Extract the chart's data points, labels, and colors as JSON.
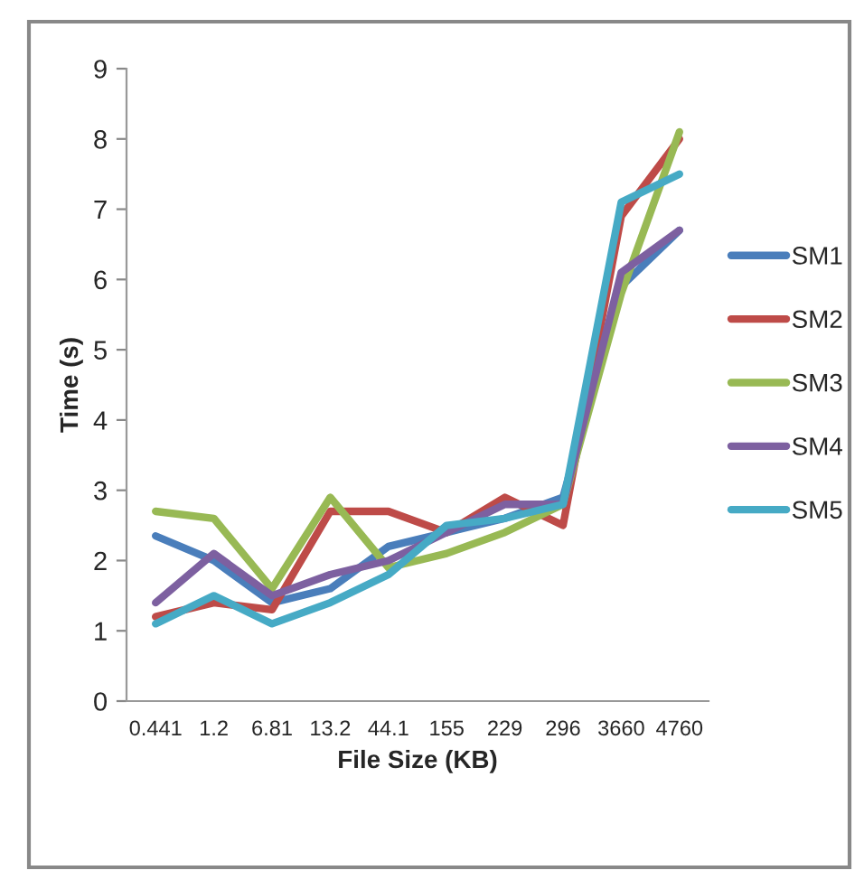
{
  "chart_data": {
    "type": "line",
    "xlabel": "File Size (KB)",
    "ylabel": "Time (s)",
    "categories": [
      "0.441",
      "1.2",
      "6.81",
      "13.2",
      "44.1",
      "155",
      "229",
      "296",
      "3660",
      "4760"
    ],
    "ylim": [
      0,
      9
    ],
    "yticks": [
      0,
      1,
      2,
      3,
      4,
      5,
      6,
      7,
      8,
      9
    ],
    "grid": false,
    "legend": "right",
    "marker": "none",
    "line_style": "solid",
    "series": [
      {
        "name": "SM1",
        "color": "#4a7ebb",
        "values": [
          2.35,
          2.0,
          1.4,
          1.6,
          2.2,
          2.4,
          2.6,
          2.9,
          5.9,
          6.7
        ]
      },
      {
        "name": "SM2",
        "color": "#be4b48",
        "values": [
          1.2,
          1.4,
          1.3,
          2.7,
          2.7,
          2.4,
          2.9,
          2.5,
          6.9,
          8.0
        ]
      },
      {
        "name": "SM3",
        "color": "#98b954",
        "values": [
          2.7,
          2.6,
          1.6,
          2.9,
          1.9,
          2.1,
          2.4,
          2.8,
          5.8,
          8.1
        ]
      },
      {
        "name": "SM4",
        "color": "#7d60a0",
        "values": [
          1.4,
          2.1,
          1.5,
          1.8,
          2.0,
          2.4,
          2.8,
          2.8,
          6.1,
          6.7
        ]
      },
      {
        "name": "SM5",
        "color": "#46aac5",
        "values": [
          1.1,
          1.5,
          1.1,
          1.4,
          1.8,
          2.5,
          2.6,
          2.8,
          7.1,
          7.5
        ]
      }
    ]
  }
}
